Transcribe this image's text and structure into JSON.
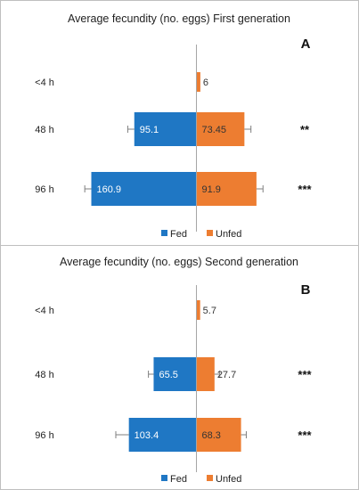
{
  "chart_data": [
    {
      "type": "bar",
      "orientation": "horizontal-diverging",
      "title": "Average fecundity (no. eggs) First generation",
      "panel_label": "A",
      "categories": [
        "<4 h",
        "48 h",
        "96 h"
      ],
      "series": [
        {
          "name": "Fed",
          "color": "#1f77c4",
          "values": [
            0,
            95.1,
            160.9
          ],
          "labels": [
            "",
            "95.1",
            "160.9"
          ],
          "errors": [
            0,
            10,
            10
          ]
        },
        {
          "name": "Unfed",
          "color": "#ed7d31",
          "values": [
            6,
            73.45,
            91.9
          ],
          "labels": [
            "6",
            "73.45",
            "91.9"
          ],
          "errors": [
            0,
            10,
            10
          ]
        }
      ],
      "significance": [
        "",
        "**",
        "***"
      ],
      "legend": "bottom"
    },
    {
      "type": "bar",
      "orientation": "horizontal-diverging",
      "title": "Average fecundity (no. eggs) Second generation",
      "panel_label": "B",
      "categories": [
        "<4 h",
        "48 h",
        "96 h"
      ],
      "series": [
        {
          "name": "Fed",
          "color": "#1f77c4",
          "values": [
            0,
            65.5,
            103.4
          ],
          "labels": [
            "",
            "65.5",
            "103.4"
          ],
          "errors": [
            0,
            8,
            20
          ]
        },
        {
          "name": "Unfed",
          "color": "#ed7d31",
          "values": [
            5.7,
            27.7,
            68.3
          ],
          "labels": [
            "5.7",
            "27.7",
            "68.3"
          ],
          "errors": [
            0,
            8,
            8
          ]
        }
      ],
      "significance": [
        "",
        "***",
        "***"
      ],
      "legend": "bottom"
    }
  ]
}
